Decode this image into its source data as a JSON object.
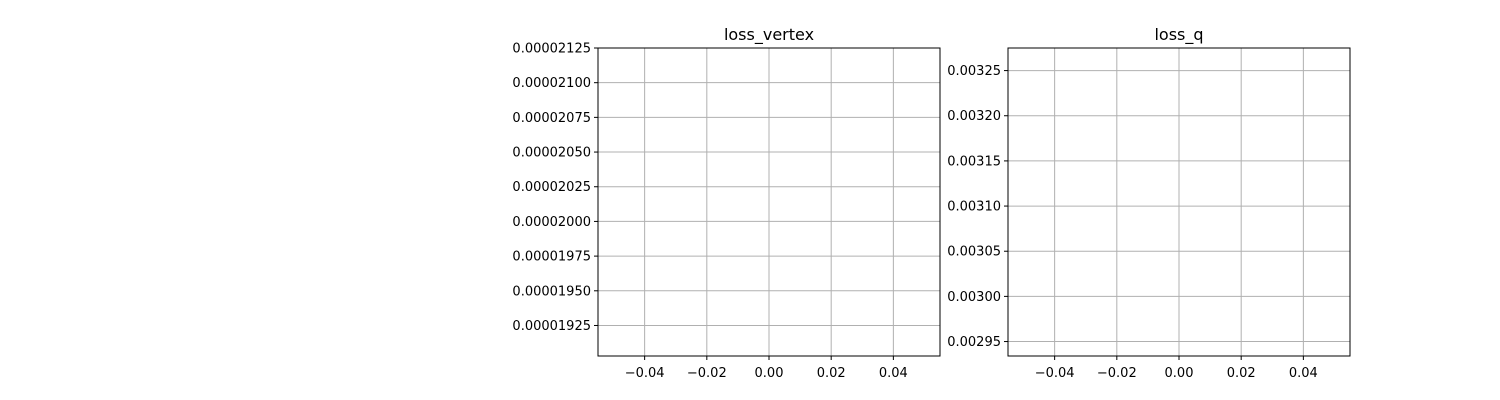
{
  "figure": {
    "background": "#ffffff",
    "grid_color": "#b0b0b0",
    "axis_color": "#000000"
  },
  "chart_data": [
    {
      "type": "line",
      "title": "loss_vertex",
      "xlabel": "",
      "ylabel": "",
      "series": [],
      "xlim": [
        -0.055,
        0.055
      ],
      "ylim": [
        1.903e-05,
        2.125e-05
      ],
      "grid": true,
      "x_ticks": [
        {
          "value": -0.04,
          "label": "−0.04"
        },
        {
          "value": -0.02,
          "label": "−0.02"
        },
        {
          "value": 0.0,
          "label": "0.00"
        },
        {
          "value": 0.02,
          "label": "0.02"
        },
        {
          "value": 0.04,
          "label": "0.04"
        }
      ],
      "y_ticks": [
        {
          "value": 1.925e-05,
          "label": "0.00001925"
        },
        {
          "value": 1.95e-05,
          "label": "0.00001950"
        },
        {
          "value": 1.975e-05,
          "label": "0.00001975"
        },
        {
          "value": 2e-05,
          "label": "0.00002000"
        },
        {
          "value": 2.025e-05,
          "label": "0.00002025"
        },
        {
          "value": 2.05e-05,
          "label": "0.00002050"
        },
        {
          "value": 2.075e-05,
          "label": "0.00002075"
        },
        {
          "value": 2.1e-05,
          "label": "0.00002100"
        },
        {
          "value": 2.125e-05,
          "label": "0.00002125"
        }
      ]
    },
    {
      "type": "line",
      "title": "loss_q",
      "xlabel": "",
      "ylabel": "",
      "series": [],
      "xlim": [
        -0.055,
        0.055
      ],
      "ylim": [
        0.002934,
        0.003275
      ],
      "grid": true,
      "x_ticks": [
        {
          "value": -0.04,
          "label": "−0.04"
        },
        {
          "value": -0.02,
          "label": "−0.02"
        },
        {
          "value": 0.0,
          "label": "0.00"
        },
        {
          "value": 0.02,
          "label": "0.02"
        },
        {
          "value": 0.04,
          "label": "0.04"
        }
      ],
      "y_ticks": [
        {
          "value": 0.00295,
          "label": "0.00295"
        },
        {
          "value": 0.003,
          "label": "0.00300"
        },
        {
          "value": 0.00305,
          "label": "0.00305"
        },
        {
          "value": 0.0031,
          "label": "0.00310"
        },
        {
          "value": 0.00315,
          "label": "0.00315"
        },
        {
          "value": 0.0032,
          "label": "0.00320"
        },
        {
          "value": 0.00325,
          "label": "0.00325"
        }
      ]
    }
  ]
}
